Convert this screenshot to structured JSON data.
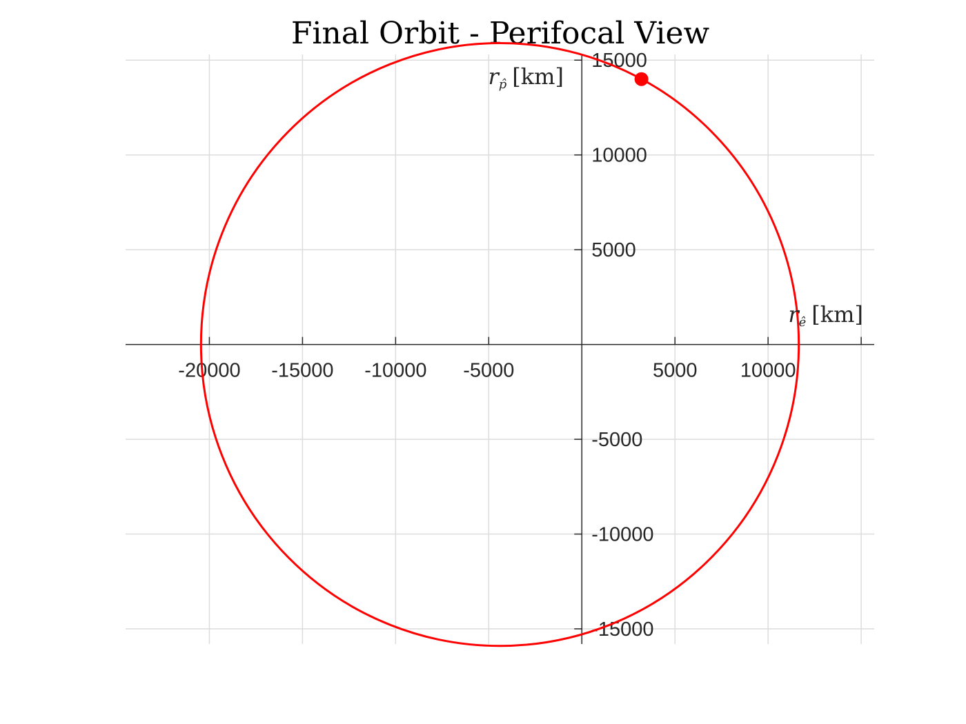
{
  "chart_data": {
    "type": "line",
    "title": "Final Orbit - Perifocal View",
    "xlabel": "",
    "ylabel": "",
    "xlabel_symbol": "r",
    "xlabel_subscript": "ê",
    "xlabel_units": "[km]",
    "ylabel_symbol": "r",
    "ylabel_subscript": "p̂",
    "ylabel_units": "[km]",
    "xlim": [
      -24500,
      15700
    ],
    "ylim": [
      -15800,
      15300
    ],
    "grid": true,
    "x_ticks": [
      -20000,
      -15000,
      -10000,
      -5000,
      0,
      5000,
      10000,
      15000
    ],
    "x_tick_labels": [
      "-20000",
      "-15000",
      "-10000",
      "-5000",
      "",
      "5000",
      "10000",
      ""
    ],
    "y_ticks": [
      -15000,
      -10000,
      -5000,
      0,
      5000,
      10000,
      15000
    ],
    "y_tick_labels": [
      "-15000",
      "-10000",
      "-5000",
      "",
      "5000",
      "10000",
      "15000"
    ],
    "series": [
      {
        "kind": "orbit-ellipse",
        "color": "#ff0000",
        "center_x": -4400,
        "center_y": 0,
        "semi_major_axis": 16050,
        "semi_minor_axis": 15900
      },
      {
        "kind": "marker",
        "color": "#ff0000",
        "x": 3200,
        "y": 14000
      }
    ]
  }
}
